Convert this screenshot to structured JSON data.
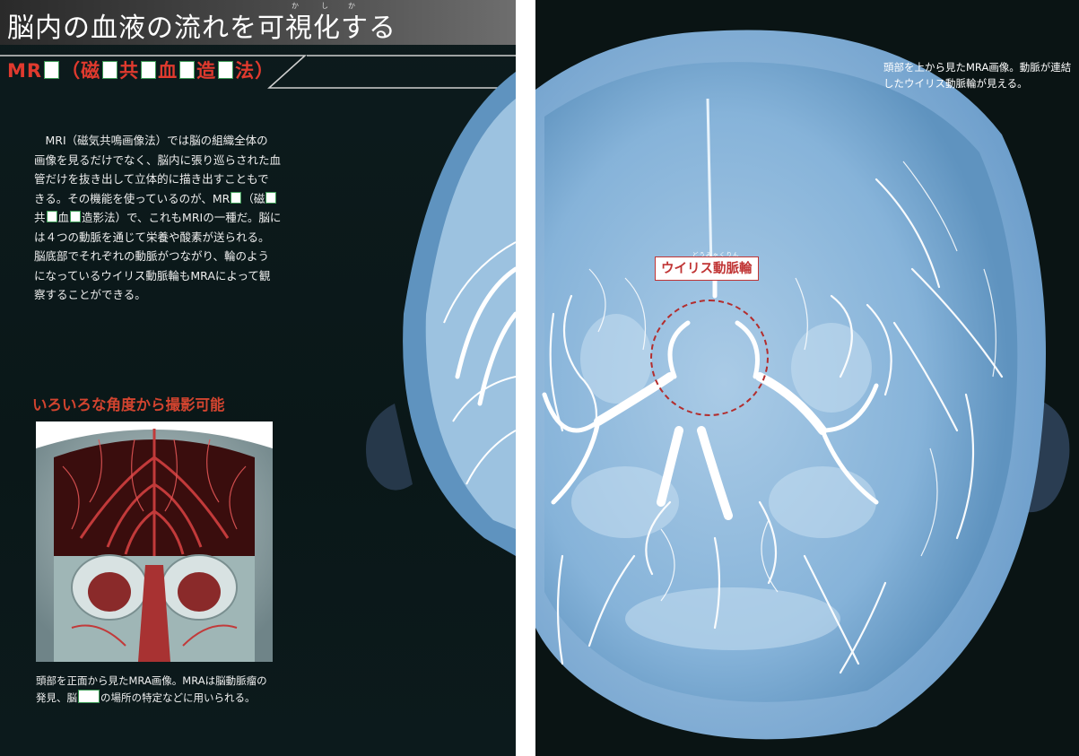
{
  "headline": {
    "title": "脳内の血液の流れを可視化する",
    "title_ruby": [
      "か",
      "し",
      "か"
    ]
  },
  "subtitle": {
    "parts": [
      "MR",
      "（磁",
      "共",
      "血",
      "造",
      "法）"
    ]
  },
  "body": {
    "lines": [
      "MRI（磁気共鳴画像法）では脳の組織全体の",
      "画像を見るだけでなく、脳内に張り巡らされた血",
      "管だけを抜き出して立体的に描き出すこともで",
      "きる。その機能を使っているのが、MR",
      "（磁",
      "共",
      "血",
      "造影法）で、これもMRIの一種だ。脳に",
      "は４つの動脈を通じて栄養や酸素が送られる。",
      "脳底部でそれぞれの動脈がつながり、輪のよう",
      "になっているウイリス動脈輪もMRAによって観",
      "察することができる。"
    ]
  },
  "section": {
    "heading": "いろいろな角度から撮影可能"
  },
  "caption_left": {
    "lines": [
      "頭部を正面から見たMRA画像。MRAは脳動脈瘤の",
      "発見、脳",
      "の場所の特定などに用いられる。"
    ]
  },
  "caption_right": {
    "lines": [
      "頭部を上から見たMRA画像。動脈が連結",
      "したウイリス動脈輪が見える。"
    ]
  },
  "annotation": {
    "label": "ウイリス動脈輪",
    "ruby": "どうみゃくりん"
  },
  "colors": {
    "accent_red": "#e03a2e",
    "label_red": "#c03434",
    "mra_blue": "#7fb0d6",
    "page_dark": "#0d1b1d"
  }
}
